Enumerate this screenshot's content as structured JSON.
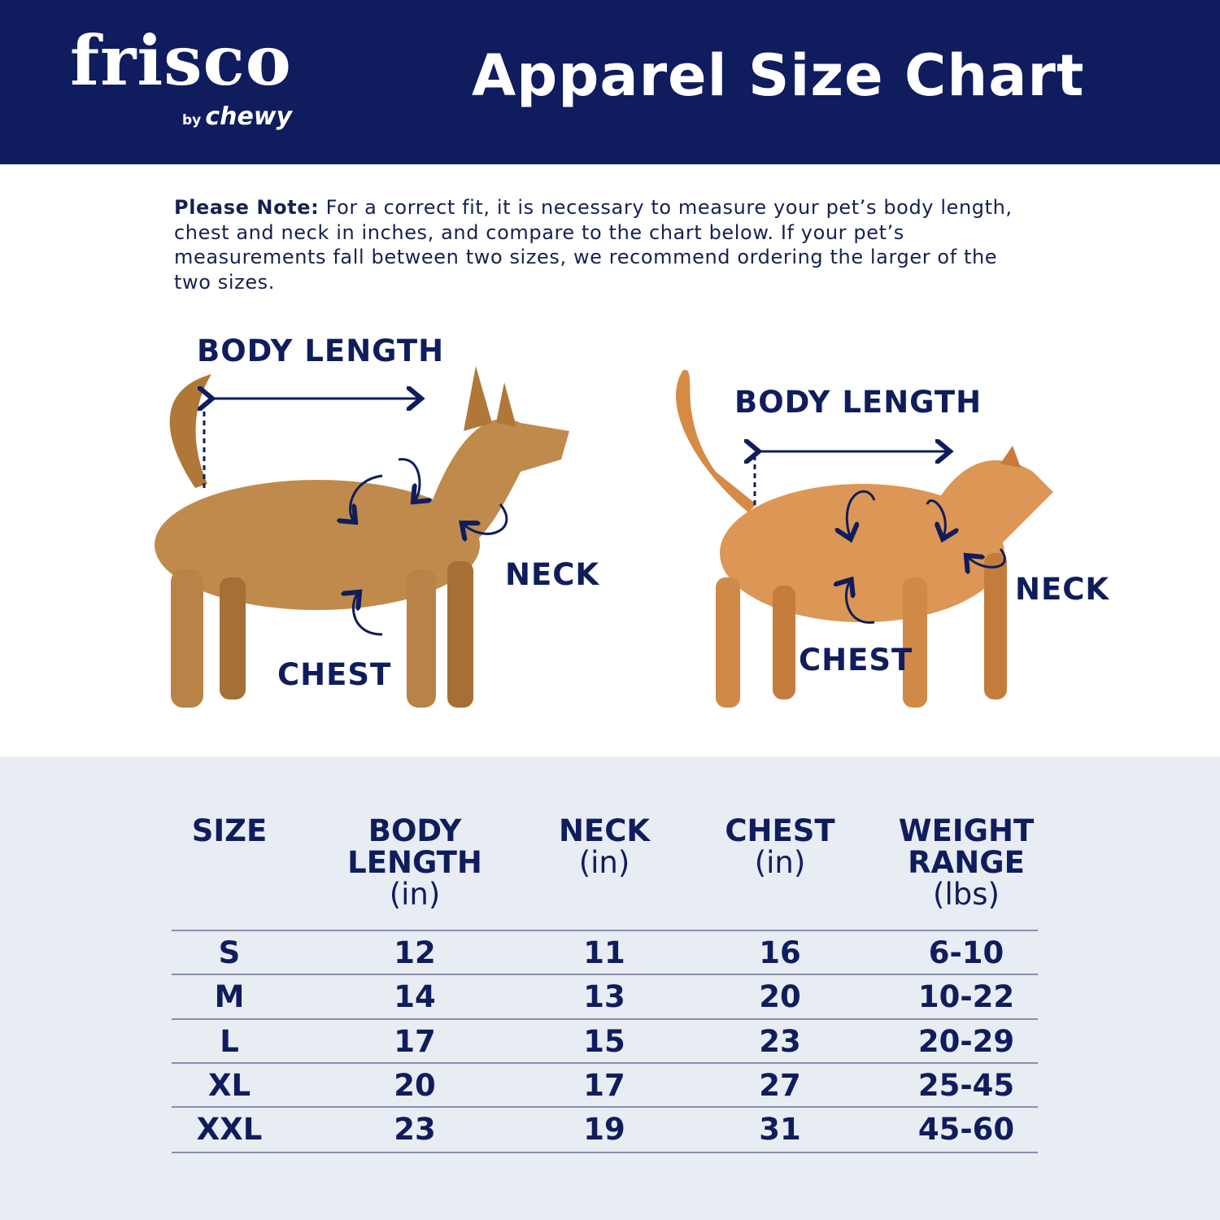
{
  "header": {
    "logo": {
      "brand": "frisco",
      "by": "by",
      "parent": "chewy"
    },
    "title": "Apparel Size Chart",
    "background_color": "#0f1c5e"
  },
  "note": {
    "label": "Please Note:",
    "text": " For a correct fit, it is necessary to measure your pet’s body length, chest and neck in inches, and compare to the chart below. If your pet’s measurements fall between two sizes, we recommend ordering the larger of the two sizes."
  },
  "diagram": {
    "dog": {
      "body_length": "BODY LENGTH",
      "neck": "NECK",
      "chest": "CHEST"
    },
    "cat": {
      "body_length": "BODY LENGTH",
      "neck": "NECK",
      "chest": "CHEST"
    }
  },
  "table": {
    "headers": [
      {
        "title": "SIZE",
        "unit": ""
      },
      {
        "title": "BODY LENGTH",
        "unit": "(in)"
      },
      {
        "title": "NECK",
        "unit": "(in)"
      },
      {
        "title": "CHEST",
        "unit": "(in)"
      },
      {
        "title": "WEIGHT RANGE",
        "unit": "(lbs)"
      }
    ],
    "rows": [
      [
        "S",
        "12",
        "11",
        "16",
        "6-10"
      ],
      [
        "M",
        "14",
        "13",
        "20",
        "10-22"
      ],
      [
        "L",
        "17",
        "15",
        "23",
        "20-29"
      ],
      [
        "XL",
        "20",
        "17",
        "27",
        "25-45"
      ],
      [
        "XXL",
        "23",
        "19",
        "31",
        "45-60"
      ]
    ]
  }
}
